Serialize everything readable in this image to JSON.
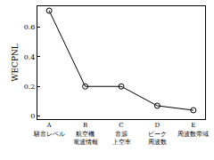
{
  "chart_data": {
    "type": "line",
    "y_label": "WECPNL",
    "categories": [
      "A\n騒音レベル",
      "B\n航空機\n電波情報",
      "C\n音源\n上空率",
      "D\nピーク\n周波数",
      "E\n周波数帯域"
    ],
    "values": [
      0.71,
      0.2,
      0.2,
      0.07,
      0.04
    ],
    "color": "#000000",
    "marker": "circle-open",
    "line_style": "solid",
    "ylim": [
      -0.02,
      0.74
    ],
    "yticks": [
      0,
      0.2,
      0.4,
      0.6
    ],
    "grid": false
  }
}
